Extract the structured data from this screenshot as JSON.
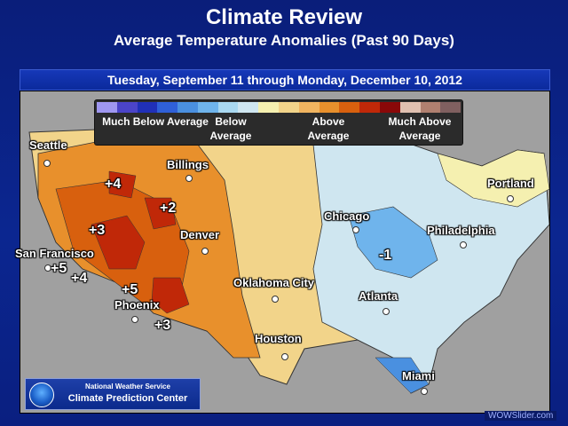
{
  "header": {
    "title": "Climate Review",
    "subtitle": "Average Temperature Anomalies (Past 90 Days)"
  },
  "banner": {
    "date_range": "Tuesday, September 11 through Monday, December 10, 2012"
  },
  "legend": {
    "colors": [
      "#9f97f0",
      "#4b44c8",
      "#2030b8",
      "#2f60d8",
      "#4a90e0",
      "#6fb4ec",
      "#a9d8f0",
      "#cfe6f0",
      "#f5f0b0",
      "#f2d48a",
      "#f0b460",
      "#e8902c",
      "#d8600e",
      "#c02808",
      "#8a0808",
      "#e0c0b0",
      "#b08070",
      "#806060"
    ],
    "labels": {
      "much_below": "Much Below Average",
      "below": "Below Average",
      "above": "Above Average",
      "much_above": "Much Above Average"
    }
  },
  "map": {
    "cities": {
      "seattle": "Seattle",
      "billings": "Billings",
      "portland": "Portland",
      "chicago": "Chicago",
      "philadelphia": "Philadelphia",
      "san_francisco": "San Francisco",
      "denver": "Denver",
      "oklahoma_city": "Oklahoma City",
      "atlanta": "Atlanta",
      "phoenix": "Phoenix",
      "houston": "Houston",
      "miami": "Miami"
    },
    "anomalies": {
      "plus4_north": "+4",
      "plus2": "+2",
      "plus3_west": "+3",
      "plus5_coast": "+5",
      "plus4_coast": "+4",
      "plus5_south": "+5",
      "plus3_south": "+3",
      "minus1": "-1"
    }
  },
  "logo": {
    "line1": "National Weather Service",
    "line2": "Climate Prediction Center"
  },
  "watermark": "WOWSlider.com"
}
